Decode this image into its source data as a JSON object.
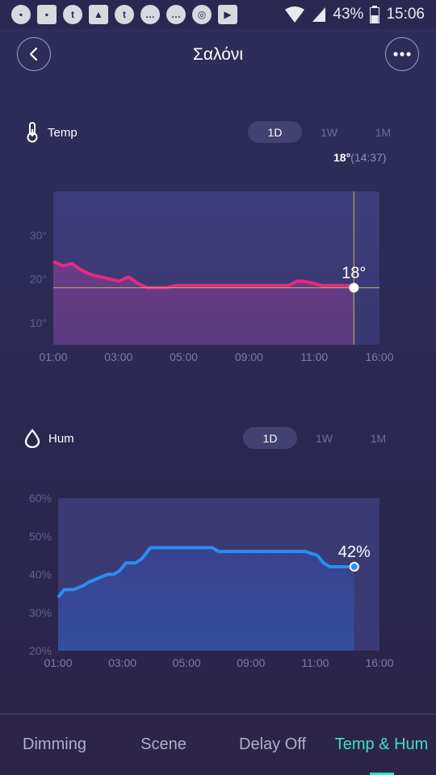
{
  "status_bar": {
    "icons": [
      "tubi-icon",
      "imdb-icon",
      "tumblr-icon",
      "gallery-icon",
      "tumblr-icon",
      "chat-icon",
      "chat-icon",
      "chrome-icon",
      "youtube-icon"
    ],
    "battery": "43%",
    "time": "15:06"
  },
  "header": {
    "title": "Σαλόνι"
  },
  "temp": {
    "label": "Temp",
    "tabs": [
      "1D",
      "1W",
      "1M"
    ],
    "active_tab": "1D",
    "readout_value": "18°",
    "readout_time": "(14:37)",
    "marker_label": "18°",
    "colors": {
      "line": "#e8287f",
      "fill_top": "#3e3a76",
      "fill_bottom": "#5e3c82"
    }
  },
  "hum": {
    "label": "Hum",
    "tabs": [
      "1D",
      "1W",
      "1M"
    ],
    "active_tab": "1D",
    "marker_label": "42%",
    "colors": {
      "line": "#2a8ef0",
      "fill_top": "#373a7c",
      "fill_bottom": "#314e9c"
    }
  },
  "chart_data": [
    {
      "type": "line",
      "title": "Temp",
      "x_tick_labels": [
        "01:00",
        "03:00",
        "05:00",
        "09:00",
        "11:00",
        "16:00"
      ],
      "y_tick_labels": [
        "30°",
        "20°",
        "10°"
      ],
      "ylim": [
        5,
        40
      ],
      "y_ticks": [
        30,
        20,
        10
      ],
      "x": [
        0,
        0.03,
        0.06,
        0.09,
        0.12,
        0.15,
        0.18,
        0.21,
        0.24,
        0.27,
        0.3,
        0.33,
        0.36,
        0.39,
        0.42,
        0.45,
        0.48,
        0.5,
        0.55,
        0.6,
        0.65,
        0.7,
        0.75,
        0.78,
        0.8,
        0.83,
        0.86,
        0.88,
        0.9,
        0.94,
        0.96
      ],
      "values": [
        24,
        23,
        23.5,
        22,
        21,
        20.5,
        20,
        19.5,
        20.5,
        19,
        18,
        18,
        18,
        18.5,
        18.5,
        18.5,
        18.5,
        18.5,
        18.5,
        18.5,
        18.5,
        18.5,
        18.5,
        19.5,
        19.5,
        19,
        18.5,
        18.5,
        18.5,
        18.5,
        18
      ],
      "current_value": 18,
      "ylabel": "",
      "xlabel": "",
      "grid": false
    },
    {
      "type": "area",
      "title": "Hum",
      "x_tick_labels": [
        "01:00",
        "03:00",
        "05:00",
        "09:00",
        "11:00",
        "16:00"
      ],
      "y_tick_labels": [
        "60%",
        "50%",
        "40%",
        "30%",
        "20%"
      ],
      "ylim": [
        20,
        60
      ],
      "y_ticks": [
        60,
        50,
        40,
        30,
        20
      ],
      "x": [
        0,
        0.02,
        0.05,
        0.08,
        0.1,
        0.13,
        0.16,
        0.18,
        0.2,
        0.22,
        0.25,
        0.27,
        0.3,
        0.33,
        0.36,
        0.38,
        0.42,
        0.5,
        0.52,
        0.55,
        0.6,
        0.7,
        0.8,
        0.84,
        0.86,
        0.88,
        0.92,
        0.96
      ],
      "values": [
        34,
        36,
        36,
        37,
        38,
        39,
        40,
        40,
        41,
        43,
        43,
        44,
        47,
        47,
        47,
        47,
        47,
        47,
        46,
        46,
        46,
        46,
        46,
        45,
        43,
        42,
        42,
        42
      ],
      "current_value": 42,
      "ylabel": "",
      "xlabel": "",
      "grid": false
    }
  ],
  "bottom_nav": {
    "items": [
      "Dimming",
      "Scene",
      "Delay Off",
      "Temp & Hum"
    ],
    "active": "Temp & Hum"
  }
}
